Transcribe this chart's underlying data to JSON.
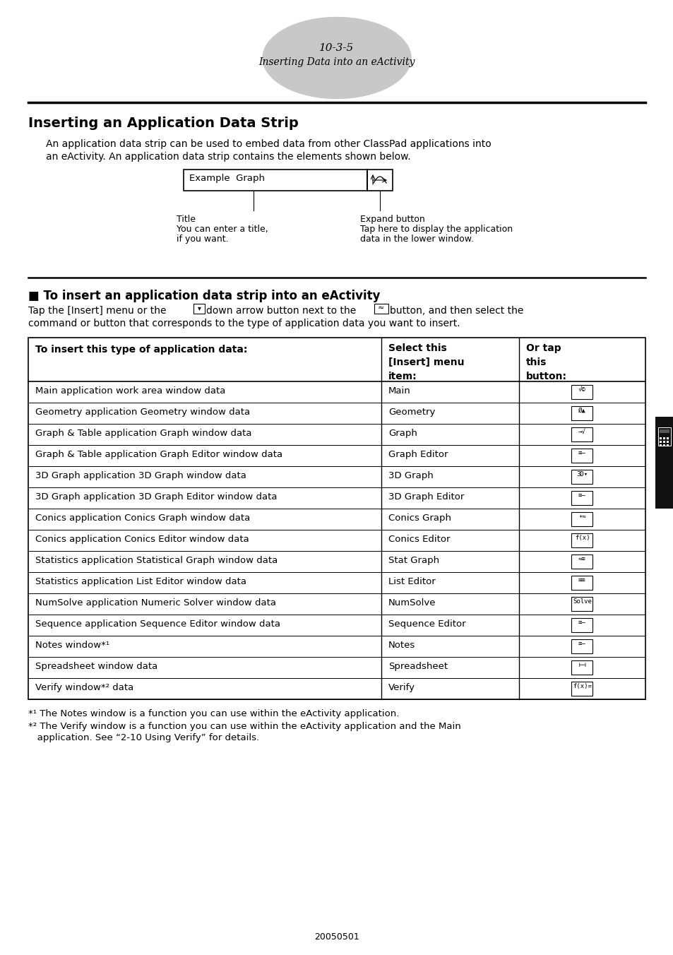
{
  "page_number": "10-3-5",
  "page_subtitle": "Inserting Data into an eActivity",
  "section_title": "Inserting an Application Data Strip",
  "intro_line1": "An application data strip can be used to embed data from other ClassPad applications into",
  "intro_line2": "an eActivity. An application data strip contains the elements shown below.",
  "subsection_title": "■ To insert an application data strip into an eActivity",
  "instr_line1": "Tap the [Insert] menu or the   down arrow button next to the   button, and then select the",
  "instr_line2": "command or button that corresponds to the type of application data you want to insert.",
  "table_col1_header": "To insert this type of application data:",
  "table_col2_header": "Select this\n[Insert] menu\nitem:",
  "table_col3_header": "Or tap\nthis\nbutton:",
  "table_rows": [
    [
      "Main application work area window data",
      "Main"
    ],
    [
      "Geometry application Geometry window data",
      "Geometry"
    ],
    [
      "Graph & Table application Graph window data",
      "Graph"
    ],
    [
      "Graph & Table application Graph Editor window data",
      "Graph Editor"
    ],
    [
      "3D Graph application 3D Graph window data",
      "3D Graph"
    ],
    [
      "3D Graph application 3D Graph Editor window data",
      "3D Graph Editor"
    ],
    [
      "Conics application Conics Graph window data",
      "Conics Graph"
    ],
    [
      "Conics application Conics Editor window data",
      "Conics Editor"
    ],
    [
      "Statistics application Statistical Graph window data",
      "Stat Graph"
    ],
    [
      "Statistics application List Editor window data",
      "List Editor"
    ],
    [
      "NumSolve application Numeric Solver window data",
      "NumSolve"
    ],
    [
      "Sequence application Sequence Editor window data",
      "Sequence Editor"
    ],
    [
      "Notes window*¹",
      "Notes"
    ],
    [
      "Spreadsheet window data",
      "Spreadsheet"
    ],
    [
      "Verify window*² data",
      "Verify"
    ]
  ],
  "footnote1": "*¹ The Notes window is a function you can use within the eActivity application.",
  "footnote2_line1": "*² The Verify window is a function you can use within the eActivity application and the Main",
  "footnote2_line2": "   application. See “2-10 Using Verify” for details.",
  "footer_text": "20050501",
  "ellipse_color": "#c8c8c8",
  "bg_color": "#ffffff",
  "tab_color": "#111111"
}
